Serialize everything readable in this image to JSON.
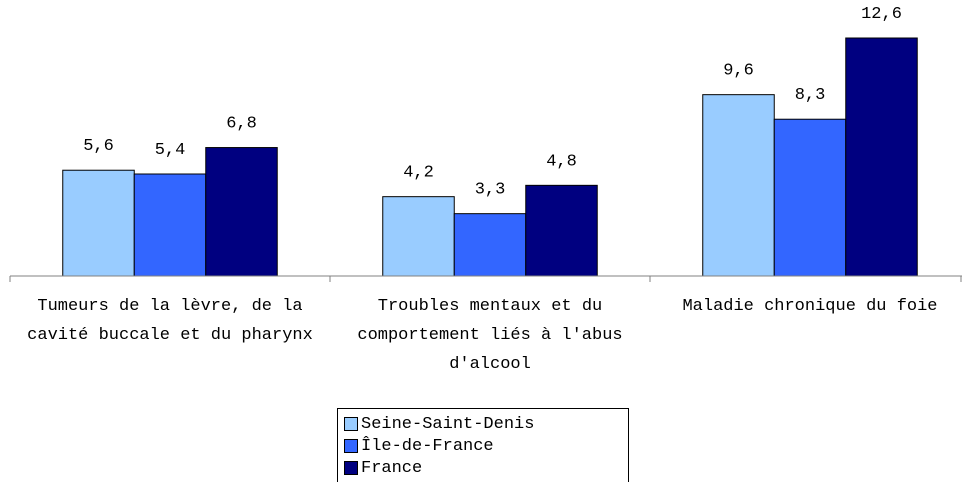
{
  "chart_data": {
    "type": "bar",
    "categories": [
      "Tumeurs de la lèvre, de la cavité buccale et du pharynx",
      "Troubles mentaux et du comportement liés à l'abus d'alcool",
      "Maladie chronique du foie"
    ],
    "series": [
      {
        "name": "Seine-Saint-Denis",
        "color": "#99ccff",
        "values": [
          5.6,
          4.2,
          9.6
        ],
        "value_labels": [
          "5,6",
          "4,2",
          "9,6"
        ]
      },
      {
        "name": "Île-de-France",
        "color": "#3366ff",
        "values": [
          5.4,
          3.3,
          8.3
        ],
        "value_labels": [
          "5,4",
          "3,3",
          "8,3"
        ]
      },
      {
        "name": "France",
        "color": "#000080",
        "values": [
          6.8,
          4.8,
          12.6
        ],
        "value_labels": [
          "6,8",
          "4,8",
          "12,6"
        ]
      }
    ],
    "legend": "bottom"
  }
}
